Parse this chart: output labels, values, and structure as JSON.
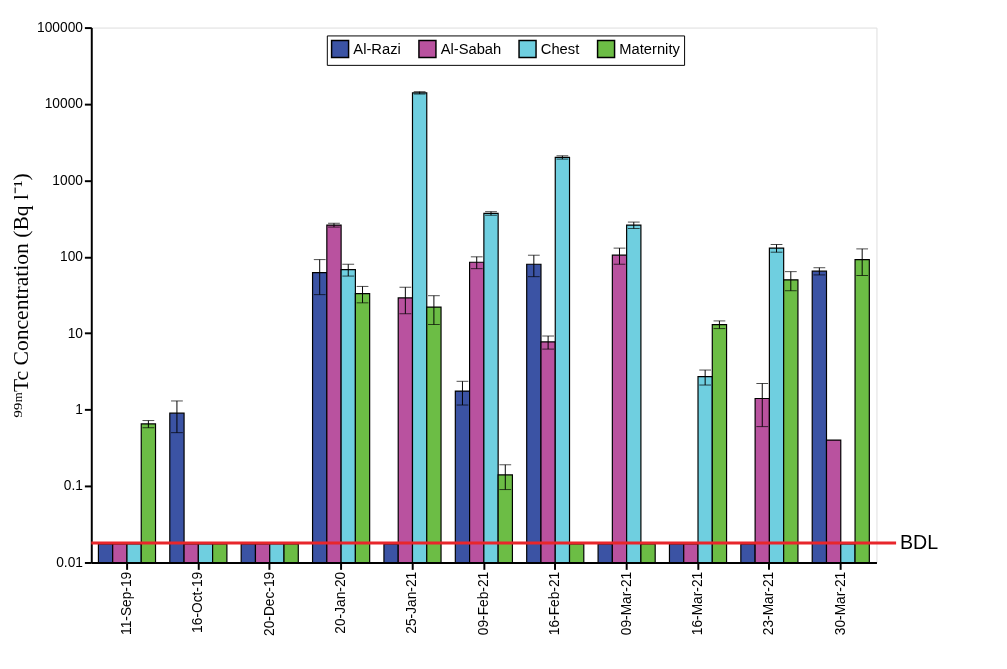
{
  "chart_data": {
    "type": "bar",
    "ylabel": "⁹⁹ᵐTc Concentration (Bq l⁻¹)",
    "categories": [
      "11-Sep-19",
      "16-Oct-19",
      "20-Dec-19",
      "20-Jan-20",
      "25-Jan-21",
      "09-Feb-21",
      "16-Feb-21",
      "09-Mar-21",
      "16-Mar-21",
      "23-Mar-21",
      "30-Mar-21"
    ],
    "series": [
      {
        "name": "Al-Razi",
        "color": "#3b53a4",
        "values": [
          0.0175,
          0.9,
          0.0175,
          62,
          0.0175,
          1.75,
          80,
          0.0175,
          0.0175,
          0.0175,
          65
        ],
        "errors": [
          null,
          0.4,
          null,
          30,
          null,
          0.6,
          25,
          null,
          null,
          null,
          7
        ]
      },
      {
        "name": "Al-Sabah",
        "color": "#b9529f",
        "values": [
          0.0175,
          0.0175,
          0.0175,
          260,
          29,
          85,
          7.7,
          105,
          0.0175,
          1.4,
          0.4
        ],
        "errors": [
          null,
          null,
          null,
          15,
          11,
          15,
          1.5,
          25,
          null,
          0.8,
          null
        ]
      },
      {
        "name": "Chest",
        "color": "#6fcfe0",
        "values": [
          0.0175,
          0.0175,
          0.0175,
          68,
          14000,
          370,
          2000,
          260,
          2.7,
          130,
          0.0175
        ],
        "errors": [
          null,
          null,
          null,
          12,
          500,
          20,
          100,
          25,
          0.6,
          15,
          null
        ]
      },
      {
        "name": "Maternity",
        "color": "#6cbd45",
        "values": [
          0.65,
          0.0175,
          0.0175,
          33,
          22,
          0.14,
          0.0175,
          0.0175,
          13,
          50,
          92
        ],
        "errors": [
          0.07,
          null,
          null,
          8,
          9,
          0.05,
          null,
          null,
          1.5,
          14,
          35
        ]
      }
    ],
    "log": true,
    "ylim": [
      0.01,
      100000
    ],
    "yticks": [
      0.01,
      0.1,
      1,
      10,
      100,
      1000,
      10000,
      100000
    ],
    "ref_lines": [
      {
        "axis": "y",
        "value": 0.018,
        "label": "BDL",
        "color": "#e8262b"
      }
    ],
    "legend": "top",
    "grid": false
  }
}
